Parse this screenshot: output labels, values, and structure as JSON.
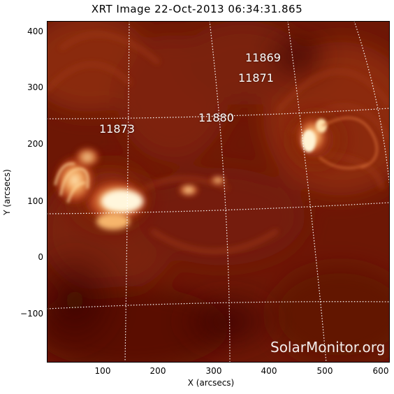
{
  "title": "XRT Image 22-Oct-2013 06:34:31.865",
  "xlabel": "X (arcsecs)",
  "ylabel": "Y (arcsecs)",
  "yticks": [
    "400",
    "300",
    "200",
    "100",
    "0",
    "−100"
  ],
  "xticks": [
    "100",
    "200",
    "300",
    "400",
    "500",
    "600"
  ],
  "regions": [
    "11869",
    "11871",
    "11880",
    "11873"
  ],
  "watermark": "SolarMonitor.org",
  "colors": {
    "background": "#6b1504",
    "bright": "#ffe8b0",
    "grid": "#ffffff"
  }
}
